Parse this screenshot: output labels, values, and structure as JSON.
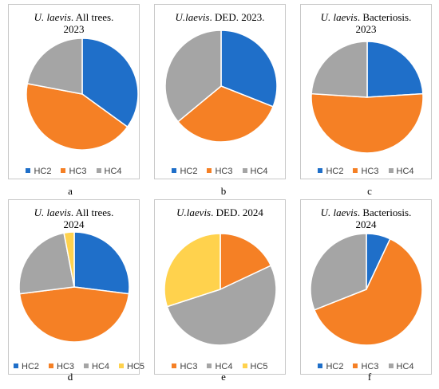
{
  "colors": {
    "HC2": "#1f6fc9",
    "HC3": "#f58025",
    "HC4": "#a5a5a5",
    "HC5": "#ffd24d"
  },
  "chart_data": [
    {
      "id": "a",
      "type": "pie",
      "title_species": "U. laevis",
      "title_rest": ". All trees.",
      "title_line2": "2023",
      "categories": [
        "HC2",
        "HC3",
        "HC4"
      ],
      "values": [
        35,
        43,
        22
      ],
      "legend": [
        "HC2",
        "HC3",
        "HC4"
      ],
      "caption": "a"
    },
    {
      "id": "b",
      "type": "pie",
      "title_species": "U.laevis",
      "title_rest": ". DED. 2023.",
      "title_line2": "",
      "categories": [
        "HC2",
        "HC3",
        "HC4"
      ],
      "values": [
        31,
        33,
        36
      ],
      "legend": [
        "HC2",
        "HC3",
        "HC4"
      ],
      "caption": "b"
    },
    {
      "id": "c",
      "type": "pie",
      "title_species": "U. laevis",
      "title_rest": ". Bacteriosis.",
      "title_line2": "2023",
      "categories": [
        "HC2",
        "HC3",
        "HC4"
      ],
      "values": [
        24,
        52,
        24
      ],
      "legend": [
        "HC2",
        "HC3",
        "HC4"
      ],
      "caption": "c"
    },
    {
      "id": "d",
      "type": "pie",
      "title_species": "U. laevis",
      "title_rest": ". All trees.",
      "title_line2": "2024",
      "categories": [
        "HC2",
        "HC3",
        "HC4",
        "HC5"
      ],
      "values": [
        27,
        46,
        24,
        3
      ],
      "legend": [
        "HC2",
        "HC3",
        "HC4",
        "HC5"
      ],
      "caption": "d"
    },
    {
      "id": "e",
      "type": "pie",
      "title_species": "U.laevis",
      "title_rest": ". DED. 2024",
      "title_line2": "",
      "categories": [
        "HC3",
        "HC4",
        "HC5"
      ],
      "values": [
        18,
        52,
        30
      ],
      "legend": [
        "HC3",
        "HC4",
        "HC5"
      ],
      "caption": "e"
    },
    {
      "id": "f",
      "type": "pie",
      "title_species": "U. laevis",
      "title_rest": ". Bacteriosis.",
      "title_line2": "2024",
      "categories": [
        "HC2",
        "HC3",
        "HC4"
      ],
      "values": [
        7,
        62,
        31
      ],
      "legend": [
        "HC2",
        "HC3",
        "HC4"
      ],
      "caption": "f"
    }
  ]
}
